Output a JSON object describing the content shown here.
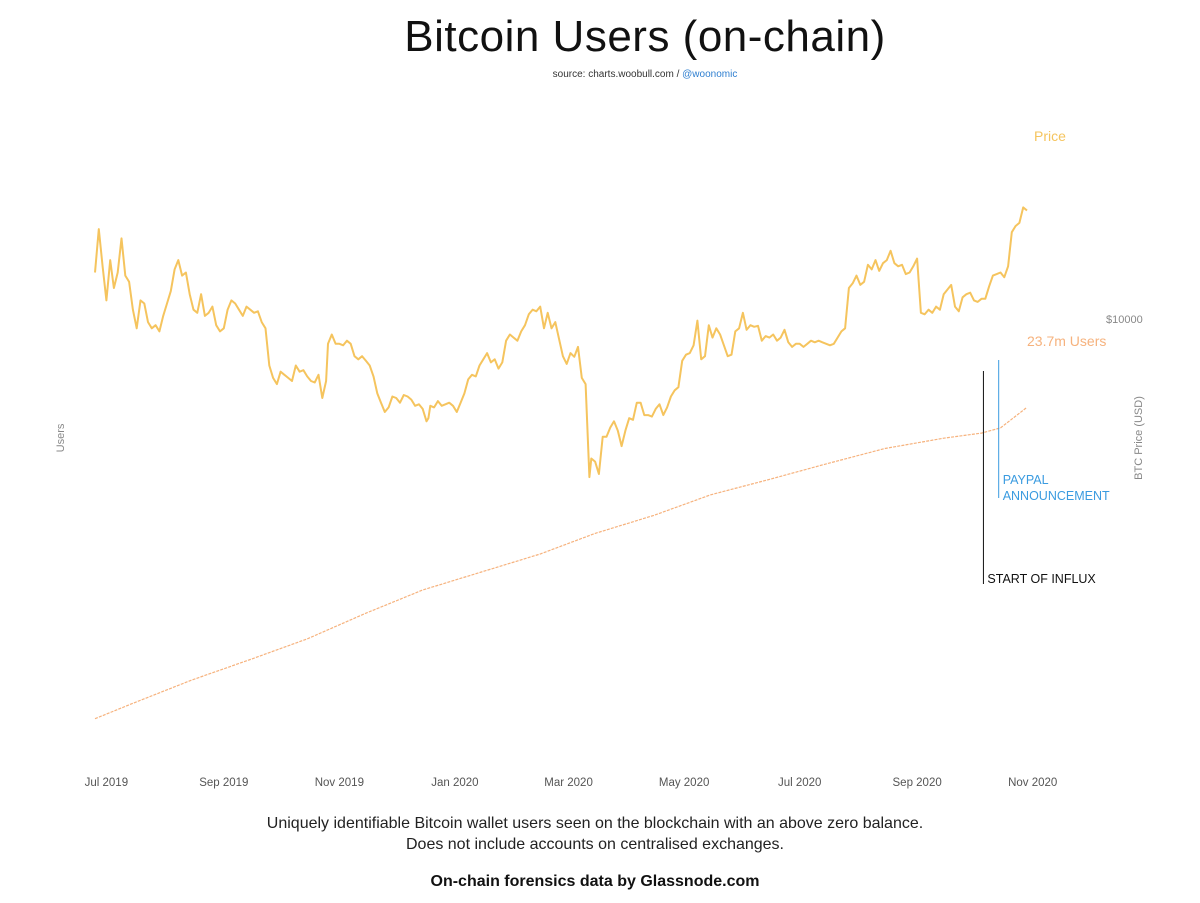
{
  "title": "Bitcoin Users (on-chain)",
  "source": {
    "prefix": "source: charts.woobull.com /",
    "handle": "@woonomic"
  },
  "description": [
    "Uniquely identifiable Bitcoin wallet users seen on the blockchain with an above zero balance.",
    "Does not include accounts on centralised exchanges."
  ],
  "footer": "On-chain forensics data by Glassnode.com",
  "colors": {
    "price": "#f5c45e",
    "users": "#f6b27d",
    "paypal": "#3a9be0",
    "influx": "#111111"
  },
  "chart_data": {
    "type": "line",
    "x_range": [
      "2019-06-25",
      "2020-10-29"
    ],
    "x_ticks": [
      "Jul 2019",
      "Sep 2019",
      "Nov 2019",
      "Jan 2020",
      "Mar 2020",
      "May 2020",
      "Jul 2020",
      "Sep 2020",
      "Nov 2020"
    ],
    "ylabel_left": "Users",
    "ylabel_right": "BTC Price (USD)",
    "right_ticks": [
      {
        "label": "$10000",
        "value": 10000
      }
    ],
    "price_ylim": [
      0,
      16000
    ],
    "users_ylim": [
      12,
      27
    ],
    "series": [
      {
        "name": "Price",
        "values": [
          [
            "2019-06-25",
            11500
          ],
          [
            "2019-06-27",
            12900
          ],
          [
            "2019-06-29",
            11700
          ],
          [
            "2019-07-01",
            10600
          ],
          [
            "2019-07-03",
            11900
          ],
          [
            "2019-07-05",
            11000
          ],
          [
            "2019-07-07",
            11500
          ],
          [
            "2019-07-09",
            12600
          ],
          [
            "2019-07-11",
            11400
          ],
          [
            "2019-07-13",
            11200
          ],
          [
            "2019-07-15",
            10300
          ],
          [
            "2019-07-17",
            9700
          ],
          [
            "2019-07-19",
            10600
          ],
          [
            "2019-07-21",
            10500
          ],
          [
            "2019-07-23",
            9900
          ],
          [
            "2019-07-25",
            9700
          ],
          [
            "2019-07-27",
            9800
          ],
          [
            "2019-07-29",
            9600
          ],
          [
            "2019-07-31",
            10100
          ],
          [
            "2019-08-02",
            10500
          ],
          [
            "2019-08-04",
            10900
          ],
          [
            "2019-08-06",
            11600
          ],
          [
            "2019-08-08",
            11900
          ],
          [
            "2019-08-10",
            11400
          ],
          [
            "2019-08-12",
            11500
          ],
          [
            "2019-08-14",
            10800
          ],
          [
            "2019-08-16",
            10300
          ],
          [
            "2019-08-18",
            10200
          ],
          [
            "2019-08-20",
            10800
          ],
          [
            "2019-08-22",
            10100
          ],
          [
            "2019-08-24",
            10200
          ],
          [
            "2019-08-26",
            10400
          ],
          [
            "2019-08-28",
            9800
          ],
          [
            "2019-08-30",
            9600
          ],
          [
            "2019-09-01",
            9700
          ],
          [
            "2019-09-03",
            10300
          ],
          [
            "2019-09-05",
            10600
          ],
          [
            "2019-09-07",
            10500
          ],
          [
            "2019-09-09",
            10300
          ],
          [
            "2019-09-11",
            10100
          ],
          [
            "2019-09-13",
            10400
          ],
          [
            "2019-09-15",
            10300
          ],
          [
            "2019-09-17",
            10200
          ],
          [
            "2019-09-19",
            10250
          ],
          [
            "2019-09-21",
            9900
          ],
          [
            "2019-09-23",
            9700
          ],
          [
            "2019-09-25",
            8500
          ],
          [
            "2019-09-27",
            8100
          ],
          [
            "2019-09-29",
            7900
          ],
          [
            "2019-10-01",
            8300
          ],
          [
            "2019-10-03",
            8200
          ],
          [
            "2019-10-05",
            8100
          ],
          [
            "2019-10-07",
            8000
          ],
          [
            "2019-10-09",
            8500
          ],
          [
            "2019-10-11",
            8300
          ],
          [
            "2019-10-13",
            8350
          ],
          [
            "2019-10-15",
            8150
          ],
          [
            "2019-10-17",
            8000
          ],
          [
            "2019-10-19",
            7950
          ],
          [
            "2019-10-21",
            8200
          ],
          [
            "2019-10-23",
            7450
          ],
          [
            "2019-10-25",
            8000
          ],
          [
            "2019-10-26",
            9200
          ],
          [
            "2019-10-28",
            9500
          ],
          [
            "2019-10-30",
            9200
          ],
          [
            "2019-11-01",
            9200
          ],
          [
            "2019-11-03",
            9150
          ],
          [
            "2019-11-05",
            9300
          ],
          [
            "2019-11-07",
            9200
          ],
          [
            "2019-11-09",
            8800
          ],
          [
            "2019-11-11",
            8700
          ],
          [
            "2019-11-13",
            8800
          ],
          [
            "2019-11-15",
            8650
          ],
          [
            "2019-11-17",
            8500
          ],
          [
            "2019-11-19",
            8150
          ],
          [
            "2019-11-21",
            7600
          ],
          [
            "2019-11-23",
            7300
          ],
          [
            "2019-11-25",
            7000
          ],
          [
            "2019-11-27",
            7150
          ],
          [
            "2019-11-29",
            7500
          ],
          [
            "2019-12-01",
            7450
          ],
          [
            "2019-12-03",
            7300
          ],
          [
            "2019-12-05",
            7550
          ],
          [
            "2019-12-07",
            7500
          ],
          [
            "2019-12-09",
            7400
          ],
          [
            "2019-12-11",
            7200
          ],
          [
            "2019-12-13",
            7250
          ],
          [
            "2019-12-15",
            7100
          ],
          [
            "2019-12-17",
            6700
          ],
          [
            "2019-12-18",
            6800
          ],
          [
            "2019-12-19",
            7200
          ],
          [
            "2019-12-21",
            7150
          ],
          [
            "2019-12-23",
            7350
          ],
          [
            "2019-12-25",
            7200
          ],
          [
            "2019-12-27",
            7250
          ],
          [
            "2019-12-29",
            7300
          ],
          [
            "2019-12-31",
            7200
          ],
          [
            "2020-01-02",
            7000
          ],
          [
            "2020-01-04",
            7300
          ],
          [
            "2020-01-06",
            7600
          ],
          [
            "2020-01-08",
            8050
          ],
          [
            "2020-01-10",
            8200
          ],
          [
            "2020-01-12",
            8150
          ],
          [
            "2020-01-14",
            8500
          ],
          [
            "2020-01-16",
            8700
          ],
          [
            "2020-01-18",
            8900
          ],
          [
            "2020-01-20",
            8600
          ],
          [
            "2020-01-22",
            8700
          ],
          [
            "2020-01-24",
            8400
          ],
          [
            "2020-01-26",
            8600
          ],
          [
            "2020-01-28",
            9300
          ],
          [
            "2020-01-30",
            9500
          ],
          [
            "2020-02-01",
            9400
          ],
          [
            "2020-02-03",
            9300
          ],
          [
            "2020-02-05",
            9600
          ],
          [
            "2020-02-07",
            9800
          ],
          [
            "2020-02-09",
            10150
          ],
          [
            "2020-02-11",
            10300
          ],
          [
            "2020-02-13",
            10250
          ],
          [
            "2020-02-15",
            10400
          ],
          [
            "2020-02-17",
            9700
          ],
          [
            "2020-02-19",
            10200
          ],
          [
            "2020-02-21",
            9700
          ],
          [
            "2020-02-23",
            9900
          ],
          [
            "2020-02-25",
            9350
          ],
          [
            "2020-02-27",
            8800
          ],
          [
            "2020-02-29",
            8550
          ],
          [
            "2020-03-02",
            8900
          ],
          [
            "2020-03-04",
            8780
          ],
          [
            "2020-03-06",
            9100
          ],
          [
            "2020-03-08",
            8100
          ],
          [
            "2020-03-10",
            7900
          ],
          [
            "2020-03-12",
            4900
          ],
          [
            "2020-03-13",
            5500
          ],
          [
            "2020-03-15",
            5400
          ],
          [
            "2020-03-17",
            5000
          ],
          [
            "2020-03-19",
            6200
          ],
          [
            "2020-03-21",
            6200
          ],
          [
            "2020-03-23",
            6500
          ],
          [
            "2020-03-25",
            6700
          ],
          [
            "2020-03-27",
            6400
          ],
          [
            "2020-03-29",
            5900
          ],
          [
            "2020-03-31",
            6400
          ],
          [
            "2020-04-02",
            6800
          ],
          [
            "2020-04-04",
            6750
          ],
          [
            "2020-04-06",
            7300
          ],
          [
            "2020-04-08",
            7300
          ],
          [
            "2020-04-10",
            6900
          ],
          [
            "2020-04-12",
            6900
          ],
          [
            "2020-04-14",
            6850
          ],
          [
            "2020-04-16",
            7100
          ],
          [
            "2020-04-18",
            7250
          ],
          [
            "2020-04-20",
            6900
          ],
          [
            "2020-04-22",
            7150
          ],
          [
            "2020-04-24",
            7500
          ],
          [
            "2020-04-26",
            7700
          ],
          [
            "2020-04-28",
            7800
          ],
          [
            "2020-04-30",
            8650
          ],
          [
            "2020-05-02",
            8850
          ],
          [
            "2020-05-04",
            8900
          ],
          [
            "2020-05-06",
            9150
          ],
          [
            "2020-05-08",
            9950
          ],
          [
            "2020-05-10",
            8700
          ],
          [
            "2020-05-12",
            8800
          ],
          [
            "2020-05-14",
            9800
          ],
          [
            "2020-05-16",
            9400
          ],
          [
            "2020-05-18",
            9700
          ],
          [
            "2020-05-20",
            9500
          ],
          [
            "2020-05-22",
            9150
          ],
          [
            "2020-05-24",
            8800
          ],
          [
            "2020-05-26",
            8850
          ],
          [
            "2020-05-28",
            9600
          ],
          [
            "2020-05-30",
            9700
          ],
          [
            "2020-06-01",
            10200
          ],
          [
            "2020-06-03",
            9650
          ],
          [
            "2020-06-05",
            9800
          ],
          [
            "2020-06-07",
            9750
          ],
          [
            "2020-06-09",
            9780
          ],
          [
            "2020-06-11",
            9300
          ],
          [
            "2020-06-13",
            9450
          ],
          [
            "2020-06-15",
            9400
          ],
          [
            "2020-06-17",
            9500
          ],
          [
            "2020-06-19",
            9300
          ],
          [
            "2020-06-21",
            9400
          ],
          [
            "2020-06-23",
            9650
          ],
          [
            "2020-06-25",
            9250
          ],
          [
            "2020-06-27",
            9100
          ],
          [
            "2020-06-29",
            9200
          ],
          [
            "2020-07-01",
            9200
          ],
          [
            "2020-07-03",
            9100
          ],
          [
            "2020-07-05",
            9200
          ],
          [
            "2020-07-07",
            9300
          ],
          [
            "2020-07-09",
            9250
          ],
          [
            "2020-07-11",
            9300
          ],
          [
            "2020-07-13",
            9250
          ],
          [
            "2020-07-15",
            9200
          ],
          [
            "2020-07-17",
            9150
          ],
          [
            "2020-07-19",
            9200
          ],
          [
            "2020-07-21",
            9400
          ],
          [
            "2020-07-23",
            9600
          ],
          [
            "2020-07-25",
            9700
          ],
          [
            "2020-07-27",
            11000
          ],
          [
            "2020-07-29",
            11150
          ],
          [
            "2020-07-31",
            11400
          ],
          [
            "2020-08-02",
            11100
          ],
          [
            "2020-08-04",
            11200
          ],
          [
            "2020-08-06",
            11750
          ],
          [
            "2020-08-08",
            11600
          ],
          [
            "2020-08-10",
            11900
          ],
          [
            "2020-08-12",
            11550
          ],
          [
            "2020-08-14",
            11800
          ],
          [
            "2020-08-16",
            11900
          ],
          [
            "2020-08-18",
            12200
          ],
          [
            "2020-08-20",
            11800
          ],
          [
            "2020-08-22",
            11700
          ],
          [
            "2020-08-24",
            11750
          ],
          [
            "2020-08-26",
            11450
          ],
          [
            "2020-08-28",
            11500
          ],
          [
            "2020-08-30",
            11700
          ],
          [
            "2020-09-01",
            11950
          ],
          [
            "2020-09-03",
            10200
          ],
          [
            "2020-09-05",
            10150
          ],
          [
            "2020-09-07",
            10300
          ],
          [
            "2020-09-09",
            10200
          ],
          [
            "2020-09-11",
            10400
          ],
          [
            "2020-09-13",
            10300
          ],
          [
            "2020-09-15",
            10800
          ],
          [
            "2020-09-17",
            10950
          ],
          [
            "2020-09-19",
            11100
          ],
          [
            "2020-09-21",
            10400
          ],
          [
            "2020-09-23",
            10250
          ],
          [
            "2020-09-25",
            10700
          ],
          [
            "2020-09-27",
            10800
          ],
          [
            "2020-09-29",
            10850
          ],
          [
            "2020-10-01",
            10600
          ],
          [
            "2020-10-03",
            10550
          ],
          [
            "2020-10-05",
            10650
          ],
          [
            "2020-10-07",
            10650
          ],
          [
            "2020-10-09",
            11050
          ],
          [
            "2020-10-11",
            11400
          ],
          [
            "2020-10-13",
            11450
          ],
          [
            "2020-10-15",
            11500
          ],
          [
            "2020-10-17",
            11350
          ],
          [
            "2020-10-19",
            11700
          ],
          [
            "2020-10-21",
            12800
          ],
          [
            "2020-10-23",
            13000
          ],
          [
            "2020-10-25",
            13100
          ],
          [
            "2020-10-27",
            13600
          ],
          [
            "2020-10-29",
            13500
          ]
        ]
      },
      {
        "name": "Users",
        "values": [
          [
            "2019-06-25",
            12.4
          ],
          [
            "2019-07-15",
            13.0
          ],
          [
            "2019-08-15",
            13.9
          ],
          [
            "2019-09-15",
            14.7
          ],
          [
            "2019-10-15",
            15.5
          ],
          [
            "2019-11-15",
            16.5
          ],
          [
            "2019-12-15",
            17.4
          ],
          [
            "2020-01-15",
            18.1
          ],
          [
            "2020-02-15",
            18.8
          ],
          [
            "2020-03-15",
            19.6
          ],
          [
            "2020-04-15",
            20.3
          ],
          [
            "2020-05-15",
            21.1
          ],
          [
            "2020-06-15",
            21.7
          ],
          [
            "2020-07-15",
            22.3
          ],
          [
            "2020-08-15",
            22.9
          ],
          [
            "2020-09-15",
            23.3
          ],
          [
            "2020-10-05",
            23.5
          ],
          [
            "2020-10-15",
            23.7
          ],
          [
            "2020-10-29",
            24.5
          ]
        ]
      }
    ],
    "labels": {
      "price": "Price",
      "users": "23.7m Users"
    },
    "annotations": [
      {
        "date": "2020-10-13",
        "lines": [
          "PAYPAL",
          "ANNOUNCEMENT"
        ]
      },
      {
        "date": "2020-10-06",
        "lines": [
          "START OF INFLUX"
        ]
      }
    ]
  }
}
